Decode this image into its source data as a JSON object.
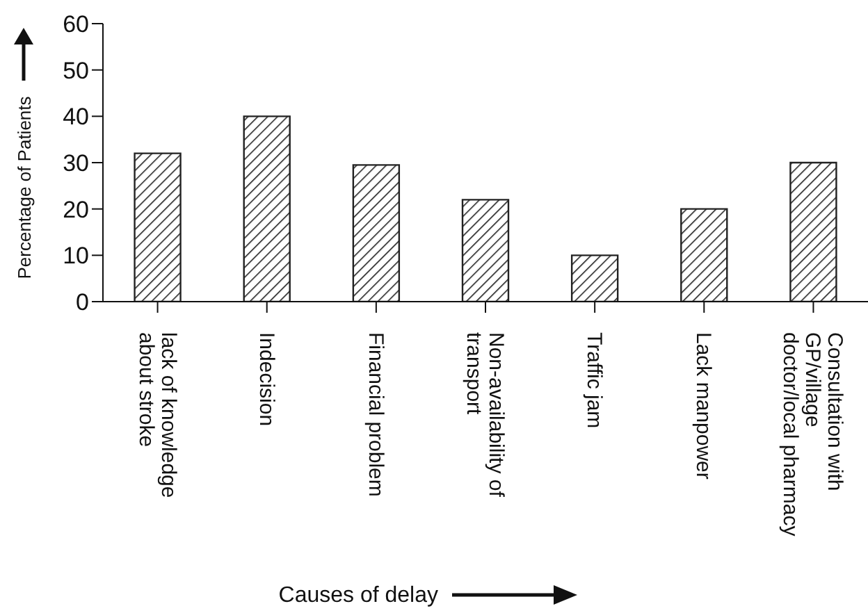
{
  "chart_data": {
    "type": "bar",
    "xlabel": "Causes of delay",
    "ylabel": "Percentage of Patients",
    "categories": [
      "lack of knowledge about stroke",
      "Indecision",
      "Financial problem",
      "Non-availability of transport",
      "Traffic jam",
      "Lack manpower",
      "Consultation with GP/village doctor/local pharmacy"
    ],
    "values": [
      32,
      40,
      29.5,
      22,
      10,
      20,
      30
    ],
    "color": "#222222",
    "ylim": [
      0,
      60
    ],
    "yticks": [
      0,
      10,
      20,
      30,
      40,
      50,
      60
    ],
    "grid": false,
    "legend": false
  }
}
